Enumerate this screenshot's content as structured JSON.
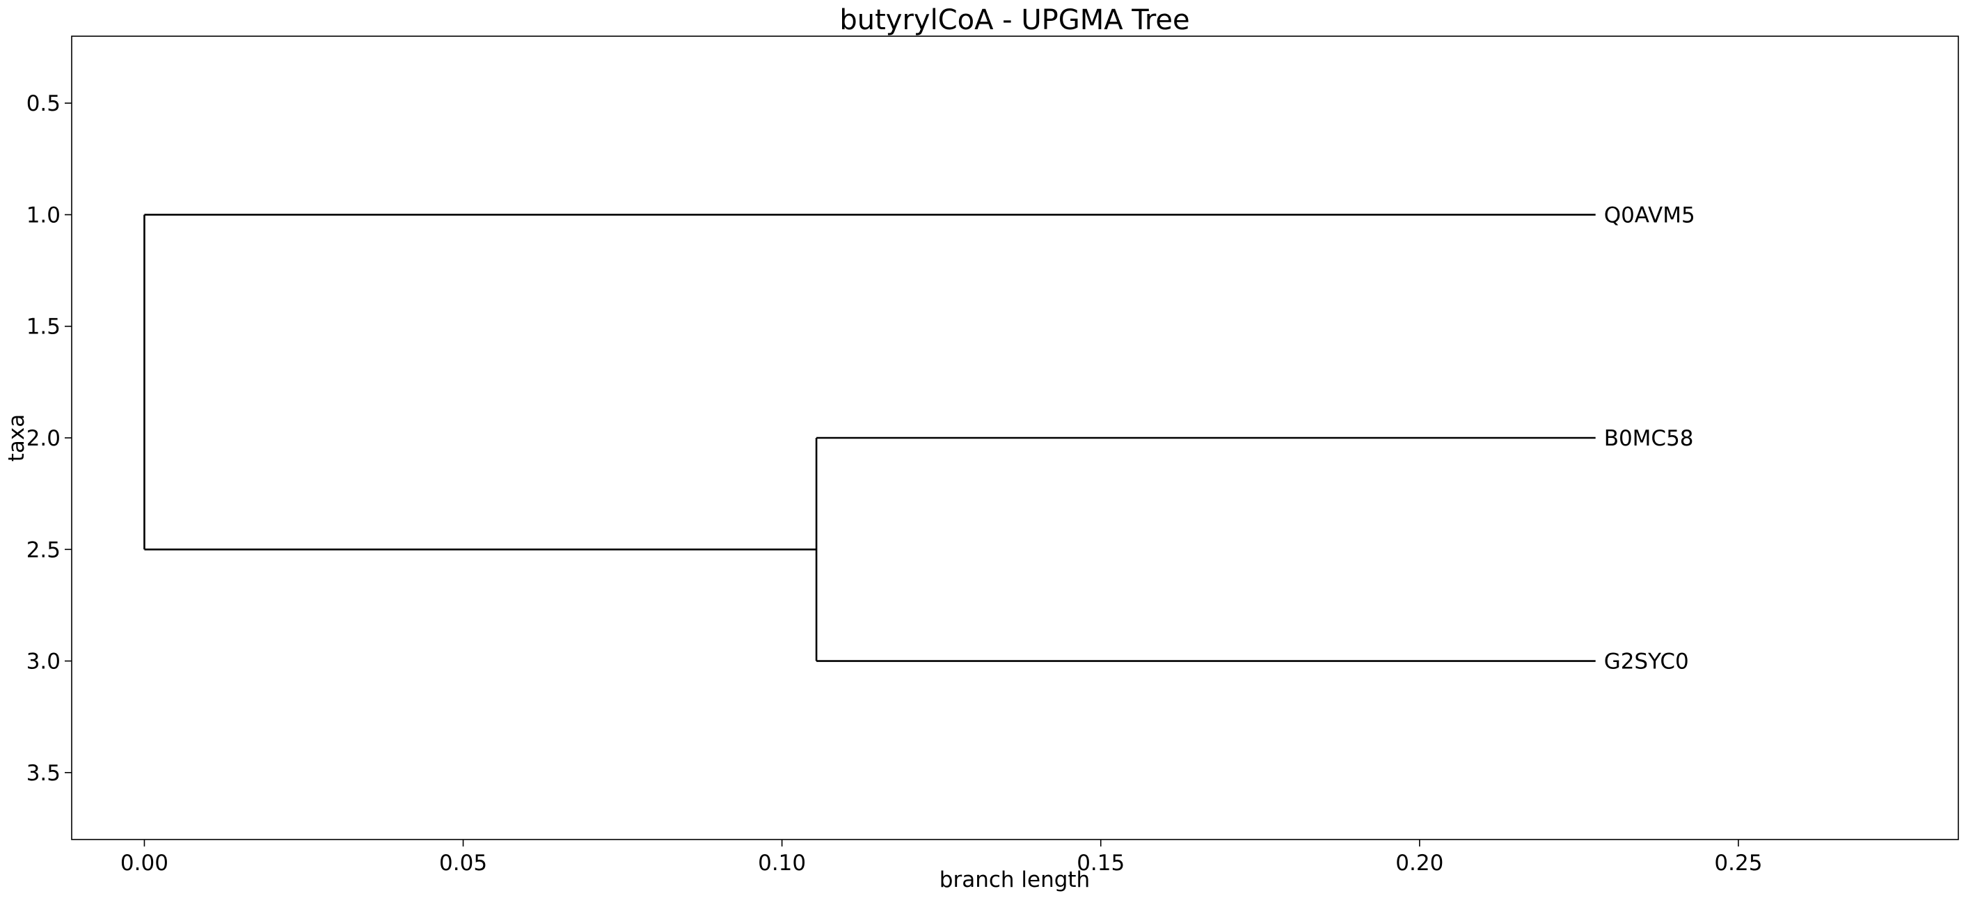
{
  "chart_data": {
    "type": "dendrogram",
    "title": "butyrylCoA - UPGMA Tree",
    "xlabel": "branch length",
    "ylabel": "taxa",
    "xlim": [
      -0.0114,
      0.2845
    ],
    "ylim": [
      3.8,
      0.2
    ],
    "y_inverted": true,
    "grid": false,
    "x_ticks": [
      "0.00",
      "0.05",
      "0.10",
      "0.15",
      "0.20",
      "0.25"
    ],
    "y_ticks": [
      "0.5",
      "1.0",
      "1.5",
      "2.0",
      "2.5",
      "3.0",
      "3.5"
    ],
    "taxa": [
      {
        "name": "Q0AVM5",
        "x": 0.2276,
        "y": 1.0
      },
      {
        "name": "B0MC58",
        "x": 0.2276,
        "y": 2.0
      },
      {
        "name": "G2SYC0",
        "x": 0.2276,
        "y": 3.0
      }
    ],
    "branches": [
      {
        "x1": 0.0,
        "y1": 1.0,
        "x2": 0.0,
        "y2": 2.5
      },
      {
        "x1": 0.0,
        "y1": 1.0,
        "x2": 0.2276,
        "y2": 1.0
      },
      {
        "x1": 0.0,
        "y1": 2.5,
        "x2": 0.1054,
        "y2": 2.5
      },
      {
        "x1": 0.1054,
        "y1": 2.0,
        "x2": 0.1054,
        "y2": 3.0
      },
      {
        "x1": 0.1054,
        "y1": 2.0,
        "x2": 0.2276,
        "y2": 2.0
      },
      {
        "x1": 0.1054,
        "y1": 3.0,
        "x2": 0.2276,
        "y2": 3.0
      }
    ]
  }
}
